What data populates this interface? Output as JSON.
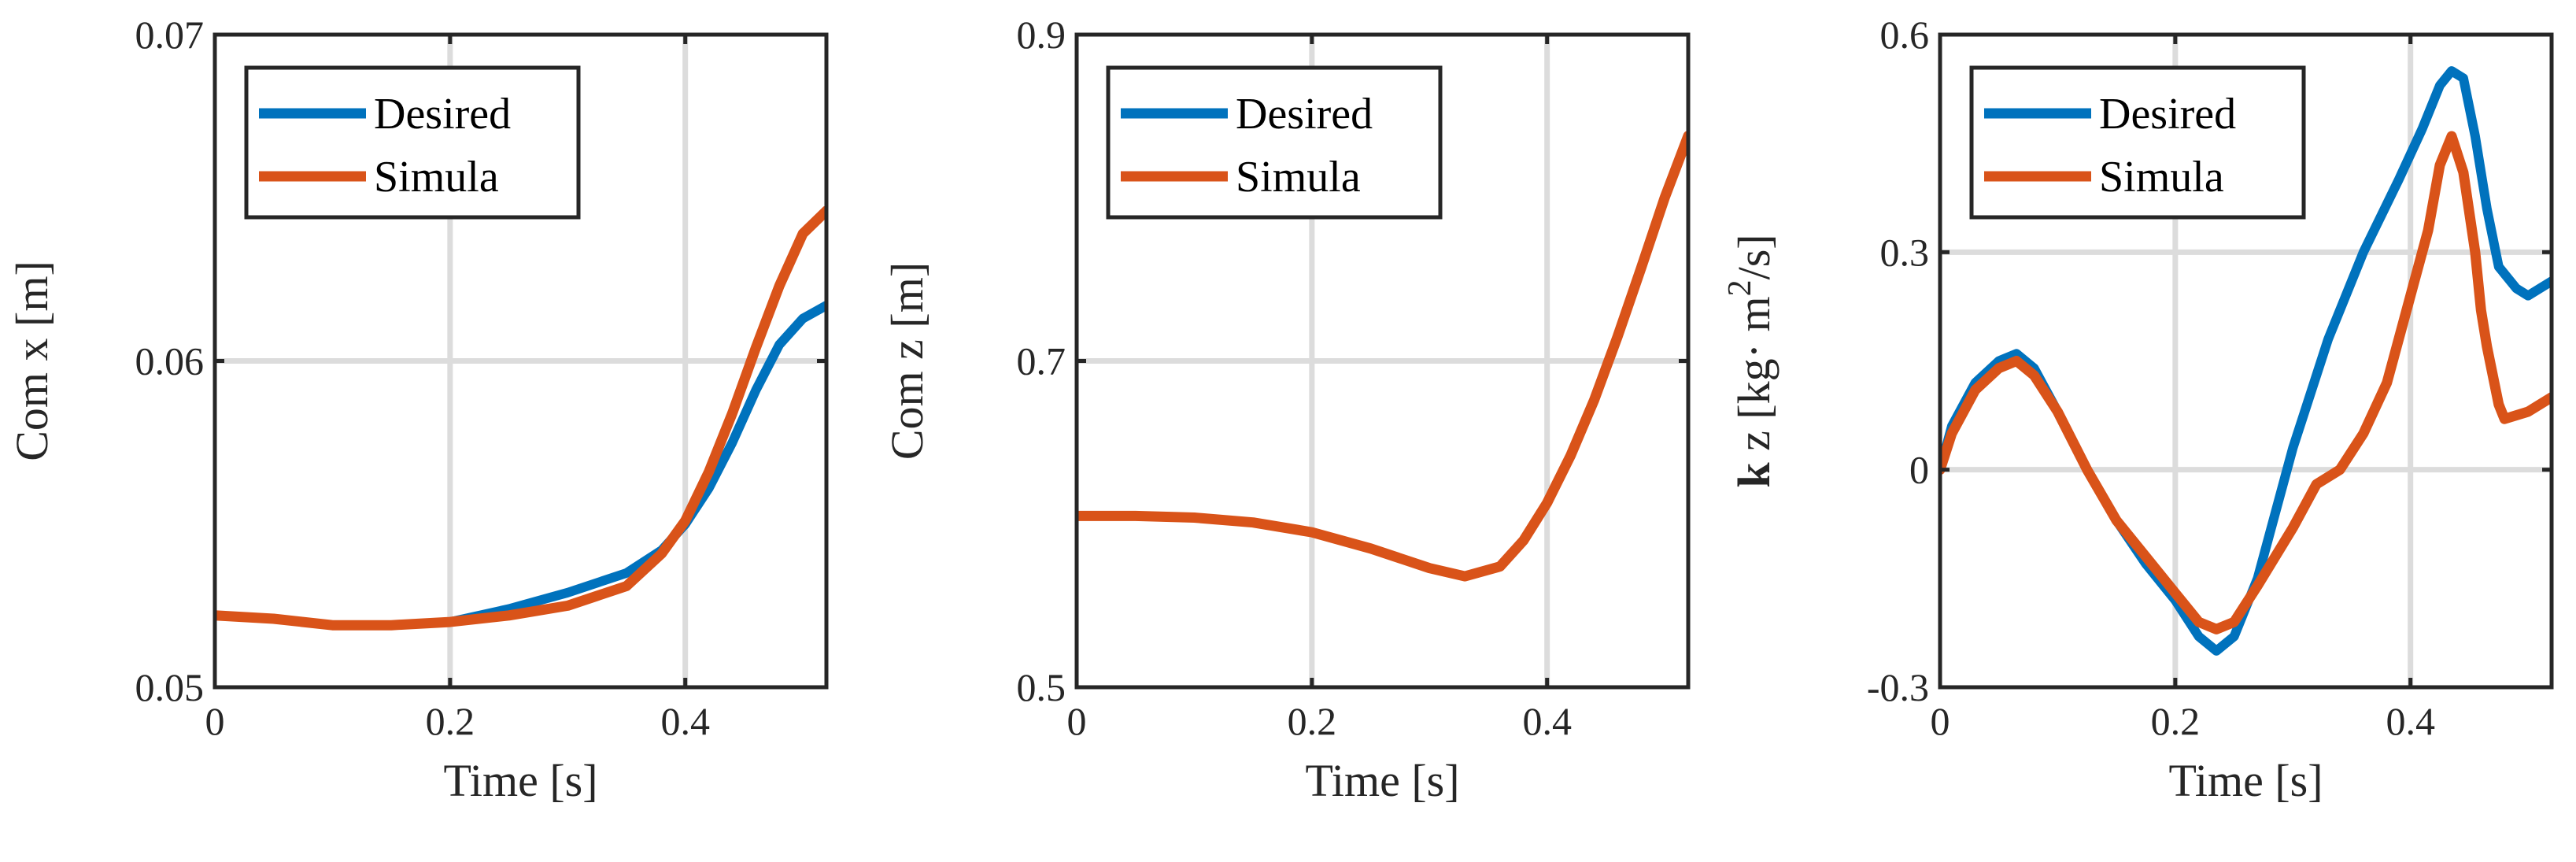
{
  "colors": {
    "desired": "#0072BD",
    "simulated": "#D95319",
    "grid": "#dcdcdc",
    "axis": "#262626"
  },
  "chart_data": [
    {
      "type": "line",
      "title": "",
      "xlabel": "Time [s]",
      "ylabel": "Com x [m]",
      "xlim": [
        0,
        0.52
      ],
      "ylim": [
        0.05,
        0.07
      ],
      "xticks": [
        0,
        0.2,
        0.4
      ],
      "xtick_labels": [
        "0",
        "0.2",
        "0.4"
      ],
      "yticks": [
        0.05,
        0.06,
        0.07
      ],
      "ytick_labels": [
        "0.05",
        "0.06",
        "0.07"
      ],
      "grid": true,
      "legend_position": "top-left",
      "series": [
        {
          "name": "Desired",
          "x": [
            0,
            0.05,
            0.1,
            0.15,
            0.2,
            0.25,
            0.3,
            0.35,
            0.38,
            0.4,
            0.42,
            0.44,
            0.46,
            0.48,
            0.5,
            0.52
          ],
          "y": [
            0.0522,
            0.0521,
            0.0519,
            0.0519,
            0.052,
            0.0524,
            0.0529,
            0.0535,
            0.0542,
            0.055,
            0.0561,
            0.0575,
            0.0591,
            0.0605,
            0.0613,
            0.0617
          ]
        },
        {
          "name": "Simula",
          "x": [
            0,
            0.05,
            0.1,
            0.15,
            0.2,
            0.25,
            0.3,
            0.35,
            0.38,
            0.4,
            0.42,
            0.44,
            0.46,
            0.48,
            0.5,
            0.52
          ],
          "y": [
            0.0522,
            0.0521,
            0.0519,
            0.0519,
            0.052,
            0.0522,
            0.0525,
            0.0531,
            0.0541,
            0.0551,
            0.0566,
            0.0584,
            0.0604,
            0.0623,
            0.0639,
            0.0646
          ]
        }
      ]
    },
    {
      "type": "line",
      "title": "",
      "xlabel": "Time [s]",
      "ylabel": "Com z [m]",
      "xlim": [
        0,
        0.52
      ],
      "ylim": [
        0.5,
        0.9
      ],
      "xticks": [
        0,
        0.2,
        0.4
      ],
      "xtick_labels": [
        "0",
        "0.2",
        "0.4"
      ],
      "yticks": [
        0.5,
        0.7,
        0.9
      ],
      "ytick_labels": [
        "0.5",
        "0.7",
        "0.9"
      ],
      "grid": true,
      "legend_position": "top-left",
      "series": [
        {
          "name": "Desired",
          "x": [
            0,
            0.05,
            0.1,
            0.15,
            0.2,
            0.25,
            0.3,
            0.33,
            0.36,
            0.38,
            0.4,
            0.42,
            0.44,
            0.46,
            0.48,
            0.5,
            0.52
          ],
          "y": [
            0.605,
            0.605,
            0.604,
            0.601,
            0.595,
            0.585,
            0.573,
            0.568,
            0.574,
            0.59,
            0.613,
            0.642,
            0.676,
            0.715,
            0.757,
            0.8,
            0.838
          ]
        },
        {
          "name": "Simula",
          "x": [
            0,
            0.05,
            0.1,
            0.15,
            0.2,
            0.25,
            0.3,
            0.33,
            0.36,
            0.38,
            0.4,
            0.42,
            0.44,
            0.46,
            0.48,
            0.5,
            0.52
          ],
          "y": [
            0.605,
            0.605,
            0.604,
            0.601,
            0.595,
            0.585,
            0.573,
            0.568,
            0.574,
            0.59,
            0.613,
            0.642,
            0.676,
            0.715,
            0.757,
            0.8,
            0.838
          ]
        }
      ]
    },
    {
      "type": "line",
      "title": "",
      "xlabel": "Time [s]",
      "ylabel": "k z [kg· m²/s]",
      "ylabel_parts": {
        "bold": "k",
        "pre": " z [kg· m",
        "sup": "2",
        "post": "/s]"
      },
      "xlim": [
        0,
        0.52
      ],
      "ylim": [
        -0.3,
        0.6
      ],
      "xticks": [
        0,
        0.2,
        0.4
      ],
      "xtick_labels": [
        "0",
        "0.2",
        "0.4"
      ],
      "yticks": [
        -0.3,
        0,
        0.3,
        0.6
      ],
      "ytick_labels": [
        "-0.3",
        "0",
        "0.3",
        "0.6"
      ],
      "grid": true,
      "legend_position": "top-left",
      "series": [
        {
          "name": "Desired",
          "x": [
            0,
            0.01,
            0.03,
            0.05,
            0.065,
            0.08,
            0.1,
            0.125,
            0.15,
            0.175,
            0.2,
            0.22,
            0.235,
            0.25,
            0.27,
            0.3,
            0.33,
            0.36,
            0.39,
            0.41,
            0.425,
            0.435,
            0.445,
            0.455,
            0.465,
            0.475,
            0.49,
            0.5,
            0.51,
            0.52
          ],
          "y": [
            0.0,
            0.06,
            0.12,
            0.15,
            0.16,
            0.14,
            0.08,
            0.0,
            -0.07,
            -0.13,
            -0.18,
            -0.23,
            -0.25,
            -0.23,
            -0.15,
            0.03,
            0.18,
            0.3,
            0.4,
            0.47,
            0.53,
            0.55,
            0.54,
            0.46,
            0.36,
            0.28,
            0.25,
            0.24,
            0.25,
            0.26
          ]
        },
        {
          "name": "Simula",
          "x": [
            0,
            0.01,
            0.03,
            0.05,
            0.065,
            0.08,
            0.1,
            0.125,
            0.15,
            0.175,
            0.2,
            0.22,
            0.235,
            0.25,
            0.27,
            0.3,
            0.32,
            0.34,
            0.36,
            0.38,
            0.4,
            0.415,
            0.425,
            0.435,
            0.445,
            0.455,
            0.46,
            0.465,
            0.47,
            0.475,
            0.48,
            0.5,
            0.52
          ],
          "y": [
            0.0,
            0.05,
            0.11,
            0.14,
            0.15,
            0.13,
            0.08,
            0.0,
            -0.07,
            -0.12,
            -0.17,
            -0.21,
            -0.22,
            -0.21,
            -0.16,
            -0.08,
            -0.02,
            0.0,
            0.05,
            0.12,
            0.24,
            0.33,
            0.42,
            0.46,
            0.41,
            0.3,
            0.22,
            0.17,
            0.13,
            0.09,
            0.07,
            0.08,
            0.1
          ]
        }
      ]
    }
  ]
}
